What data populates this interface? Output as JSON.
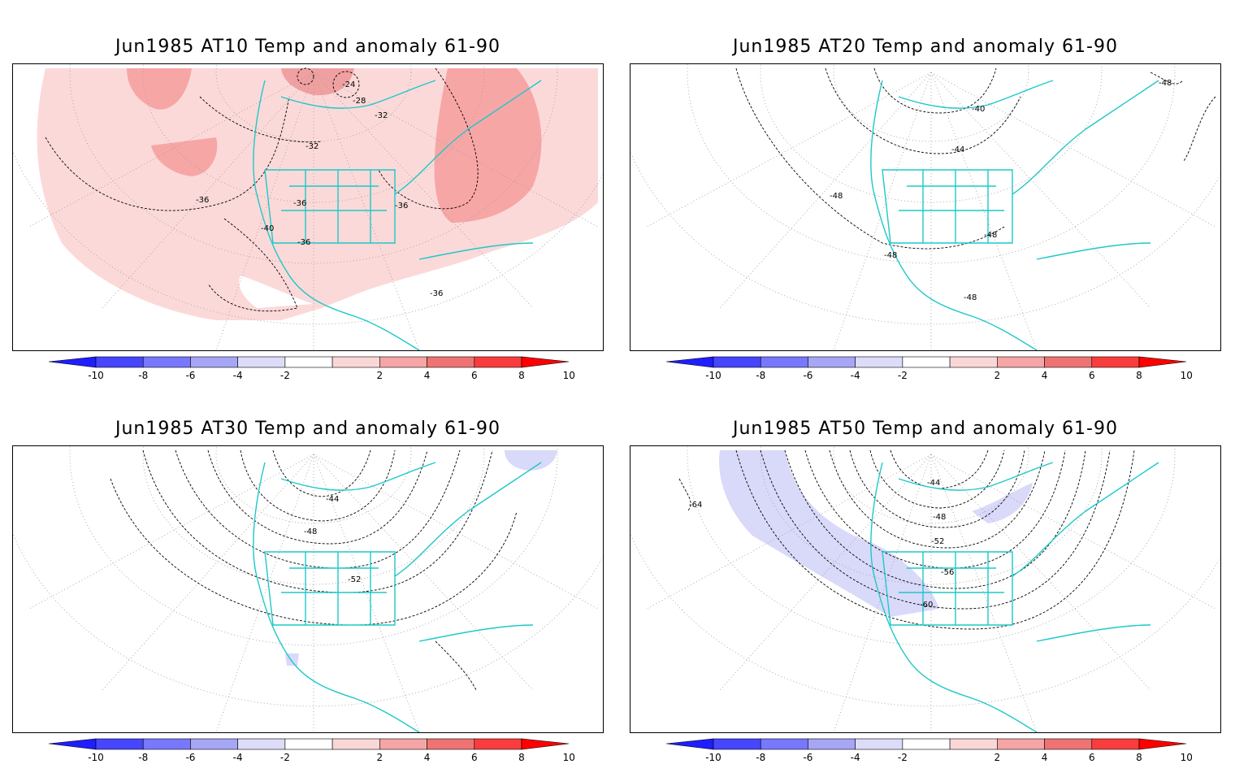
{
  "panels": [
    {
      "title": "Jun1985 AT10 Temp and anomaly 61-90",
      "contour_labels": [
        "-24",
        "-28",
        "-32",
        "-32",
        "-36",
        "-36",
        "-36",
        "-36",
        "-40",
        "-36"
      ]
    },
    {
      "title": "Jun1985 AT20 Temp and anomaly 61-90",
      "contour_labels": [
        "-48",
        "-40",
        "-44",
        "-48",
        "-48",
        "-48",
        "-48"
      ]
    },
    {
      "title": "Jun1985 AT30 Temp and anomaly 61-90",
      "contour_labels": [
        "-44",
        "-48",
        "-52"
      ]
    },
    {
      "title": "Jun1985 AT50 Temp and anomaly 61-90",
      "contour_labels": [
        "-64",
        "-44",
        "-48",
        "-52",
        "-56",
        "-60"
      ]
    }
  ],
  "colorbar": {
    "ticks": [
      "-10",
      "-8",
      "-6",
      "-4",
      "-2",
      "2",
      "4",
      "6",
      "8",
      "10"
    ],
    "colors": [
      "#1e1eff",
      "#4646ff",
      "#7878ff",
      "#a6a6f5",
      "#dcdcfa",
      "#ffffff",
      "#fad7d7",
      "#f5a5a5",
      "#f07373",
      "#fa3c3c",
      "#ff0000"
    ]
  },
  "colors": {
    "coast": "#1ec8c8",
    "anomaly_pos_light": "#fcd9d9",
    "anomaly_pos_mid": "#f7a6a6",
    "anomaly_neg_light": "#d9d9fa"
  }
}
